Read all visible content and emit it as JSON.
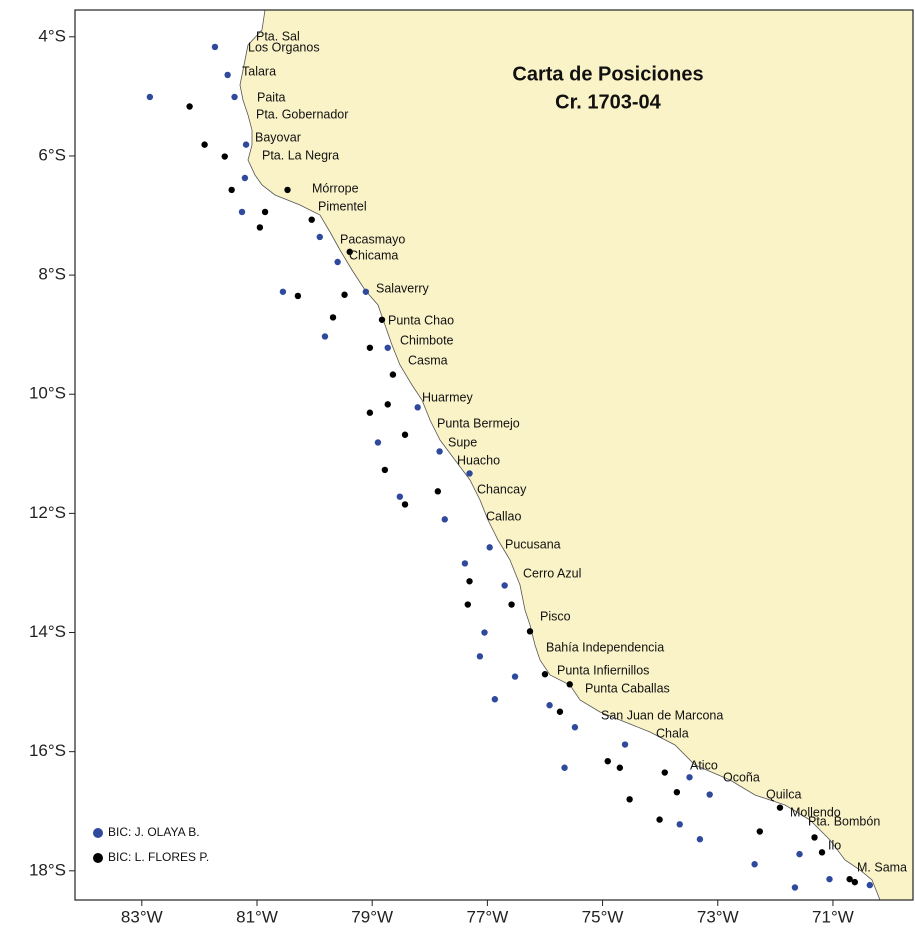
{
  "map": {
    "title": [
      "Carta de Posiciones",
      "Cr. 1703-04"
    ],
    "xlim": [
      -84.16,
      -69.61
    ],
    "ylim": [
      -18.49,
      -3.55
    ],
    "xticks": [
      {
        "value": -83,
        "label": "83°W"
      },
      {
        "value": -81,
        "label": "81°W"
      },
      {
        "value": -79,
        "label": "79°W"
      },
      {
        "value": -77,
        "label": "77°W"
      },
      {
        "value": -75,
        "label": "75°W"
      },
      {
        "value": -73,
        "label": "73°W"
      },
      {
        "value": -71,
        "label": "71°W"
      }
    ],
    "yticks": [
      {
        "value": -4,
        "label": "4°S"
      },
      {
        "value": -6,
        "label": "6°S"
      },
      {
        "value": -8,
        "label": "8°S"
      },
      {
        "value": -10,
        "label": "10°S"
      },
      {
        "value": -12,
        "label": "12°S"
      },
      {
        "value": -14,
        "label": "14°S"
      },
      {
        "value": -16,
        "label": "16°S"
      },
      {
        "value": -18,
        "label": "18°S"
      }
    ],
    "places": [
      "Pta. Sal",
      "Los Organos",
      "Talara",
      "Paita",
      "Pta. Gobernador",
      "Bayovar",
      "Pta. La Negra",
      "Mórrope",
      "Pimentel",
      "Pacasmayo",
      "Chicama",
      "Salaverry",
      "Punta Chao",
      "Chimbote",
      "Casma",
      "Huarmey",
      "Punta Bermejo",
      "Supe",
      "Huacho",
      "Chancay",
      "Callao",
      "Pucusana",
      "Cerro Azul",
      "Pisco",
      "Bahía Independencia",
      "Punta Infiernillos",
      "Punta Caballas",
      "San Juan de Marcona",
      "Chala",
      "Atico",
      "Ocoña",
      "Quilca",
      "Mollendo",
      "Pta. Bombón",
      "Ilo",
      "M. Sama"
    ],
    "series": [
      {
        "name": "BIC: J. OLAYA B.",
        "color": "#2f4a9c",
        "lon": [
          -82.86,
          -81.73,
          -81.51,
          -81.39,
          -81.19,
          -81.21,
          -81.26,
          -79.91,
          -79.6,
          -80.55,
          -79.11,
          -79.82,
          -78.73,
          -78.21,
          -78.9,
          -77.83,
          -78.52,
          -77.31,
          -77.74,
          -76.96,
          -77.39,
          -76.7,
          -77.05,
          -77.13,
          -76.52,
          -76.87,
          -75.92,
          -75.48,
          -74.61,
          -75.66,
          -73.49,
          -73.14,
          -73.66,
          -73.31,
          -72.36,
          -71.58,
          -71.06,
          -70.36,
          -71.66
        ],
        "lat": [
          -5.01,
          -4.17,
          -4.64,
          -5.01,
          -5.81,
          -6.37,
          -6.94,
          -7.36,
          -7.78,
          -8.28,
          -8.28,
          -9.03,
          -9.22,
          -10.22,
          -10.81,
          -10.96,
          -11.72,
          -11.33,
          -12.1,
          -12.57,
          -12.84,
          -13.21,
          -14.0,
          -14.4,
          -14.74,
          -15.12,
          -15.22,
          -15.59,
          -15.88,
          -16.27,
          -16.43,
          -16.72,
          -17.22,
          -17.47,
          -17.89,
          -17.72,
          -18.14,
          -18.24,
          -18.28
        ]
      },
      {
        "name": "BIC: L. FLORES P.",
        "color": "#000000",
        "lon": [
          -82.17,
          -81.91,
          -81.56,
          -81.44,
          -80.47,
          -80.86,
          -80.05,
          -80.95,
          -79.39,
          -80.29,
          -79.48,
          -78.83,
          -79.68,
          -79.04,
          -78.64,
          -78.73,
          -79.04,
          -78.43,
          -78.78,
          -77.86,
          -78.43,
          -77.31,
          -76.58,
          -77.34,
          -76.26,
          -76.0,
          -75.57,
          -75.74,
          -74.91,
          -74.7,
          -73.92,
          -73.71,
          -74.53,
          -74.01,
          -71.92,
          -72.27,
          -71.32,
          -71.19,
          -70.71,
          -70.62
        ],
        "lat": [
          -5.17,
          -5.81,
          -6.01,
          -6.57,
          -6.57,
          -6.94,
          -7.07,
          -7.2,
          -7.61,
          -8.35,
          -8.33,
          -8.75,
          -8.71,
          -9.22,
          -9.67,
          -10.17,
          -10.31,
          -10.68,
          -11.27,
          -11.63,
          -11.85,
          -13.14,
          -13.53,
          -13.53,
          -13.98,
          -14.7,
          -14.87,
          -15.33,
          -16.16,
          -16.27,
          -16.35,
          -16.68,
          -16.8,
          -17.14,
          -16.94,
          -17.34,
          -17.44,
          -17.69,
          -18.14,
          -18.19
        ]
      }
    ]
  }
}
